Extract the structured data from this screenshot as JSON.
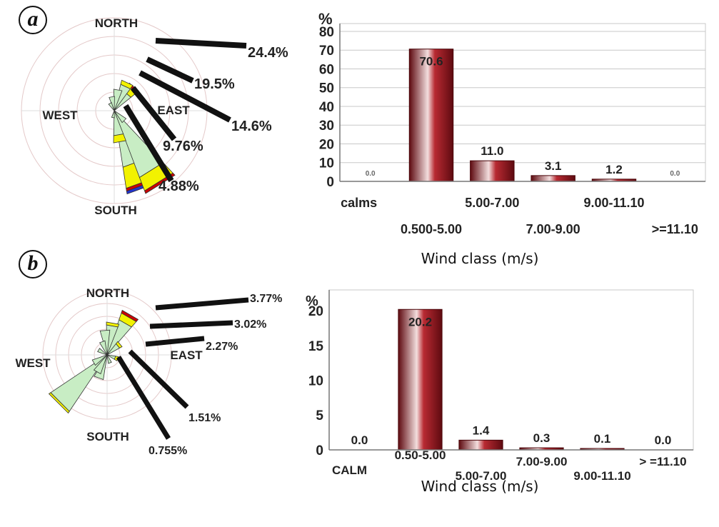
{
  "panels": [
    {
      "letter": "a",
      "rose": {
        "directions": {
          "north": "NORTH",
          "south": "SOUTH",
          "east": "EAST",
          "west": "WEST"
        },
        "ring_labels": [
          "24.4%",
          "19.5%",
          "14.6%",
          "9.76%",
          "4.88%"
        ],
        "colors": {
          "light": "#c8edc4",
          "mid": "#f2f200",
          "high": "#cc0000",
          "top": "#2233cc"
        }
      }
    },
    {
      "letter": "b",
      "rose": {
        "directions": {
          "north": "NORTH",
          "south": "SOUTH",
          "east": "EAST",
          "west": "WEST"
        },
        "ring_labels": [
          "3.77%",
          "3.02%",
          "2.27%",
          "1.51%",
          "0.755%"
        ],
        "colors": {
          "light": "#c8edc4",
          "mid": "#f2f200",
          "high": "#cc0000",
          "top": "#2233cc"
        }
      }
    }
  ],
  "chart_data": [
    {
      "type": "bar",
      "categories": [
        "calms",
        "0.500-5.00",
        "5.00-7.00",
        "7.00-9.00",
        "9.00-11.10",
        ">=11.10"
      ],
      "values": [
        0.0,
        70.6,
        11.0,
        3.1,
        1.2,
        0.0
      ],
      "data_labels": [
        "0.0",
        "70.6",
        "11.0",
        "3.1",
        "1.2",
        "0.0"
      ],
      "title": "",
      "xlabel": "Wind class (m/s)",
      "ylabel": "%",
      "ylim": [
        0,
        80
      ],
      "yticks": [
        0,
        10,
        20,
        30,
        40,
        50,
        60,
        70,
        80
      ],
      "grid": true,
      "bar_color": "#a3151e"
    },
    {
      "type": "bar",
      "categories": [
        "CALM",
        "0.50-5.00",
        "5.00-7.00",
        "7.00-9.00",
        "9.00-11.10",
        "> =11.10"
      ],
      "values": [
        0.0,
        20.2,
        1.4,
        0.3,
        0.1,
        0.0
      ],
      "data_labels": [
        "0.0",
        "20.2",
        "1.4",
        "0.3",
        "0.1",
        "0.0"
      ],
      "title": "",
      "xlabel": "Wind class (m/s)",
      "ylabel": "%",
      "ylim": [
        0,
        23
      ],
      "yticks": [
        0,
        5,
        10,
        15,
        20
      ],
      "grid": false,
      "bar_color": "#a3151e"
    }
  ]
}
